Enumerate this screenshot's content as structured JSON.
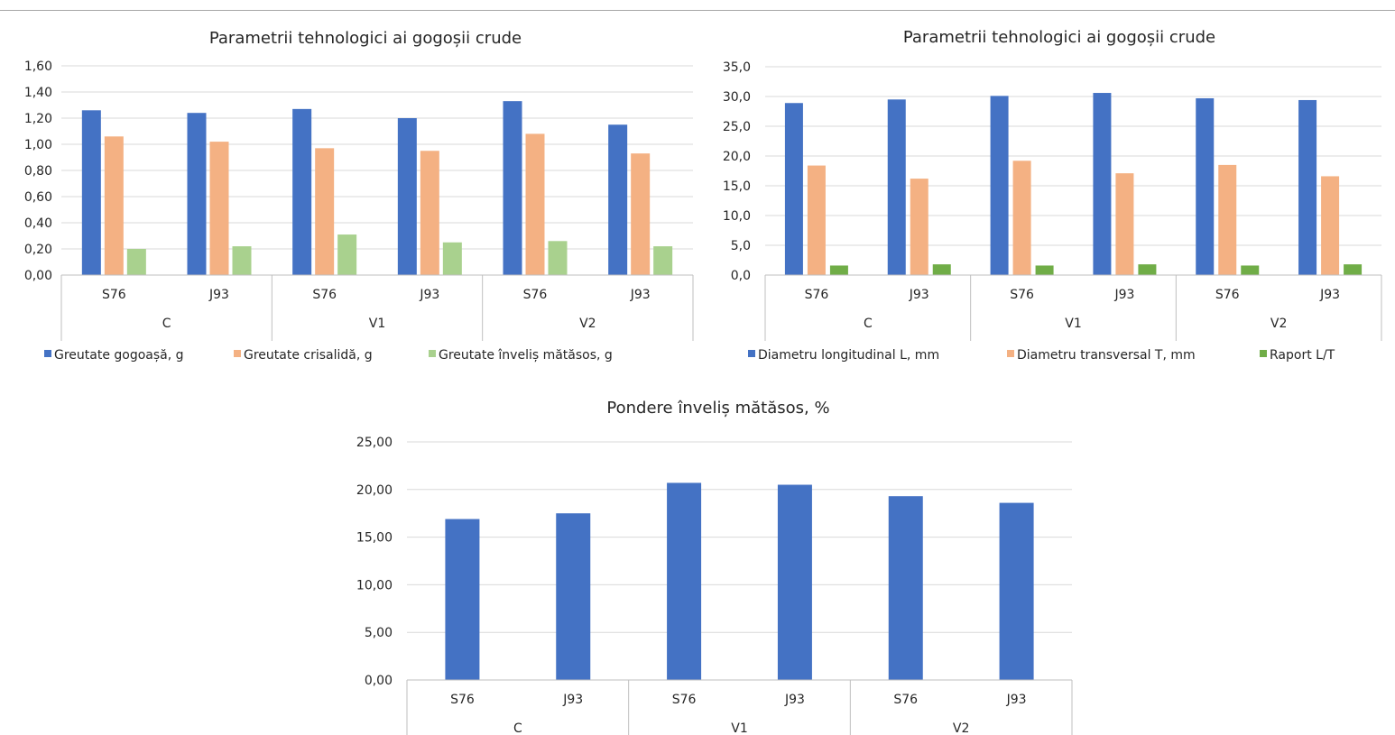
{
  "chart_data": [
    {
      "type": "bar",
      "title": "Parametrii tehnologici ai gogoșii crude",
      "groups": [
        "C",
        "V1",
        "V2"
      ],
      "categories": [
        "S76",
        "J93",
        "S76",
        "J93",
        "S76",
        "J93"
      ],
      "yticks": [
        "0,00",
        "0,20",
        "0,40",
        "0,60",
        "0,80",
        "1,00",
        "1,20",
        "1,40",
        "1,60"
      ],
      "ylim": [
        0,
        1.6
      ],
      "grid": true,
      "legend_position": "bottom",
      "series": [
        {
          "name": "Greutate gogoașă, g",
          "color": "#4472C4",
          "values": [
            1.26,
            1.24,
            1.27,
            1.2,
            1.33,
            1.15
          ]
        },
        {
          "name": "Greutate crisalidă, g",
          "color": "#F4B183",
          "values": [
            1.06,
            1.02,
            0.97,
            0.95,
            1.08,
            0.93
          ]
        },
        {
          "name": "Greutate înveliș mătăsos, g",
          "color": "#A9D18E",
          "values": [
            0.2,
            0.22,
            0.31,
            0.25,
            0.26,
            0.22
          ]
        }
      ]
    },
    {
      "type": "bar",
      "title": "Parametrii tehnologici ai gogoșii crude",
      "groups": [
        "C",
        "V1",
        "V2"
      ],
      "categories": [
        "S76",
        "J93",
        "S76",
        "J93",
        "S76",
        "J93"
      ],
      "yticks": [
        "0,0",
        "5,0",
        "10,0",
        "15,0",
        "20,0",
        "25,0",
        "30,0",
        "35,0"
      ],
      "ylim": [
        0,
        35
      ],
      "grid": true,
      "legend_position": "bottom",
      "series": [
        {
          "name": "Diametru longitudinal L, mm",
          "color": "#4472C4",
          "values": [
            28.9,
            29.5,
            30.1,
            30.6,
            29.7,
            29.4
          ]
        },
        {
          "name": "Diametru transversal T, mm",
          "color": "#F4B183",
          "values": [
            18.4,
            16.2,
            19.2,
            17.1,
            18.5,
            16.6
          ]
        },
        {
          "name": "Raport L/T",
          "color": "#70AD47",
          "values": [
            1.6,
            1.8,
            1.6,
            1.8,
            1.6,
            1.8
          ]
        }
      ]
    },
    {
      "type": "bar",
      "title": "Pondere înveliș mătăsos, %",
      "groups": [
        "C",
        "V1",
        "V2"
      ],
      "categories": [
        "S76",
        "J93",
        "S76",
        "J93",
        "S76",
        "J93"
      ],
      "yticks": [
        "0,00",
        "5,00",
        "10,00",
        "15,00",
        "20,00",
        "25,00"
      ],
      "ylim": [
        0,
        25
      ],
      "grid": true,
      "legend_position": "none",
      "series": [
        {
          "color": "#4472C4",
          "values": [
            16.9,
            17.5,
            20.7,
            20.5,
            19.3,
            18.6
          ]
        }
      ]
    }
  ]
}
